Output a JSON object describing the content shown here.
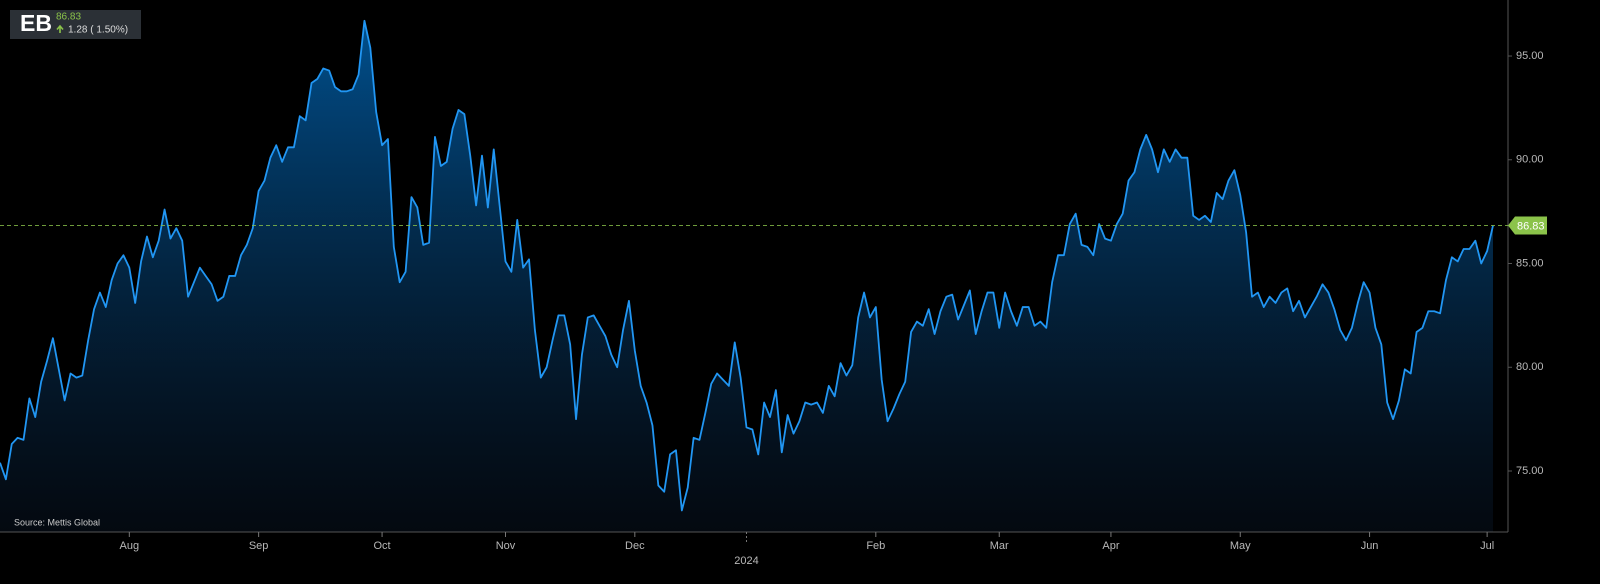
{
  "header": {
    "symbol": "EB",
    "price": "86.83",
    "change": "1.28 ( 1.50%)"
  },
  "source": "Source: Mettis Global",
  "chart_data": {
    "type": "area",
    "color": "#2196f3",
    "categories": [
      null,
      null,
      null,
      null,
      null,
      null,
      null,
      null,
      null,
      null,
      null,
      null,
      null,
      null,
      null,
      null,
      null,
      null,
      null,
      null,
      null,
      null,
      "Aug",
      null,
      null,
      null,
      null,
      null,
      null,
      null,
      null,
      null,
      null,
      null,
      null,
      null,
      null,
      null,
      null,
      null,
      null,
      null,
      null,
      null,
      "Sep",
      null,
      null,
      null,
      null,
      null,
      null,
      null,
      null,
      null,
      null,
      null,
      null,
      null,
      null,
      null,
      null,
      null,
      null,
      null,
      null,
      "Oct",
      null,
      null,
      null,
      null,
      null,
      null,
      null,
      null,
      null,
      null,
      null,
      null,
      null,
      null,
      null,
      null,
      null,
      null,
      null,
      null,
      "Nov",
      null,
      null,
      null,
      null,
      null,
      null,
      null,
      null,
      null,
      null,
      null,
      null,
      null,
      null,
      null,
      null,
      null,
      null,
      null,
      null,
      null,
      "Dec",
      null,
      null,
      null,
      null,
      null,
      null,
      null,
      null,
      null,
      null,
      null,
      null,
      null,
      null,
      null,
      null,
      null,
      null,
      "2024",
      null,
      null,
      null,
      null,
      null,
      null,
      null,
      null,
      null,
      null,
      null,
      null,
      null,
      null,
      null,
      null,
      null,
      null,
      null,
      null,
      null,
      "Feb",
      null,
      null,
      null,
      null,
      null,
      null,
      null,
      null,
      null,
      null,
      null,
      null,
      null,
      null,
      null,
      null,
      null,
      null,
      null,
      null,
      "Mar",
      null,
      null,
      null,
      null,
      null,
      null,
      null,
      null,
      null,
      null,
      null,
      null,
      null,
      null,
      null,
      null,
      null,
      null,
      "Apr",
      null,
      null,
      null,
      null,
      null,
      null,
      null,
      null,
      null,
      null,
      null,
      null,
      null,
      null,
      null,
      null,
      null,
      null,
      null,
      null,
      null,
      "May",
      null,
      null,
      null,
      null,
      null,
      null,
      null,
      null,
      null,
      null,
      null,
      null,
      null,
      null,
      null,
      null,
      null,
      null,
      null,
      null,
      null,
      "Jun",
      null,
      null,
      null,
      null,
      null,
      null,
      null,
      null,
      null,
      null,
      null,
      null,
      null,
      null,
      null,
      null,
      null,
      null,
      null,
      "Jul",
      null
    ],
    "values": [
      75.4,
      74.6,
      76.3,
      76.6,
      76.5,
      78.5,
      77.6,
      79.3,
      80.3,
      81.4,
      79.9,
      78.4,
      79.7,
      79.5,
      79.6,
      81.3,
      82.8,
      83.6,
      82.9,
      84.2,
      85.0,
      85.4,
      84.8,
      83.1,
      85.1,
      86.3,
      85.3,
      86.1,
      87.6,
      86.2,
      86.7,
      86.1,
      83.4,
      84.1,
      84.8,
      84.4,
      84.0,
      83.2,
      83.4,
      84.4,
      84.4,
      85.4,
      85.9,
      86.7,
      88.5,
      89.0,
      90.1,
      90.7,
      89.9,
      90.6,
      90.6,
      92.1,
      91.9,
      93.7,
      93.9,
      94.4,
      94.3,
      93.5,
      93.3,
      93.3,
      93.4,
      94.1,
      96.7,
      95.4,
      92.3,
      90.7,
      91.0,
      85.8,
      84.1,
      84.6,
      88.2,
      87.7,
      85.9,
      86.0,
      91.1,
      89.7,
      89.9,
      91.5,
      92.4,
      92.2,
      90.2,
      87.8,
      90.2,
      87.7,
      90.5,
      87.8,
      85.1,
      84.6,
      87.1,
      84.8,
      85.2,
      81.8,
      79.5,
      80.0,
      81.3,
      82.5,
      82.5,
      81.1,
      77.5,
      80.6,
      82.4,
      82.5,
      82.0,
      81.5,
      80.6,
      80.0,
      81.8,
      83.2,
      80.8,
      79.1,
      78.3,
      77.2,
      74.3,
      74.0,
      75.8,
      76.0,
      73.1,
      74.2,
      76.6,
      76.5,
      77.8,
      79.2,
      79.7,
      79.4,
      79.1,
      81.2,
      79.5,
      77.1,
      77.0,
      75.8,
      78.3,
      77.6,
      78.9,
      75.9,
      77.7,
      76.8,
      77.4,
      78.3,
      78.2,
      78.3,
      77.8,
      79.1,
      78.6,
      80.2,
      79.6,
      80.1,
      82.4,
      83.6,
      82.4,
      82.9,
      79.4,
      77.4,
      78.0,
      78.7,
      79.3,
      81.7,
      82.2,
      82.0,
      82.8,
      81.6,
      82.7,
      83.4,
      83.5,
      82.3,
      83.0,
      83.7,
      81.6,
      82.7,
      83.6,
      83.6,
      81.9,
      83.6,
      82.7,
      82.0,
      82.9,
      82.9,
      82.0,
      82.2,
      81.9,
      84.1,
      85.4,
      85.4,
      86.9,
      87.4,
      85.9,
      85.8,
      85.4,
      86.9,
      86.2,
      86.1,
      86.9,
      87.4,
      89.0,
      89.4,
      90.5,
      91.2,
      90.5,
      89.4,
      90.5,
      89.9,
      90.5,
      90.1,
      90.1,
      87.3,
      87.1,
      87.3,
      87.0,
      88.4,
      88.1,
      89.0,
      89.5,
      88.3,
      86.5,
      83.4,
      83.6,
      82.9,
      83.4,
      83.1,
      83.6,
      83.8,
      82.7,
      83.2,
      82.4,
      82.9,
      83.4,
      84.0,
      83.6,
      82.8,
      81.8,
      81.3,
      81.9,
      83.1,
      84.1,
      83.6,
      81.9,
      81.1,
      78.3,
      77.5,
      78.4,
      79.9,
      79.7,
      81.7,
      81.9,
      82.7,
      82.7,
      82.6,
      84.2,
      85.3,
      85.1,
      85.7,
      85.7,
      86.1,
      85.0,
      85.6,
      86.83
    ],
    "ylim": [
      72.06,
      97.7
    ],
    "yticks": [
      {
        "value": 75,
        "label": "75.00"
      },
      {
        "value": 80,
        "label": "80.00"
      },
      {
        "value": 85,
        "label": "85.00"
      },
      {
        "value": 90,
        "label": "90.00"
      },
      {
        "value": 95,
        "label": "95.00"
      }
    ]
  }
}
